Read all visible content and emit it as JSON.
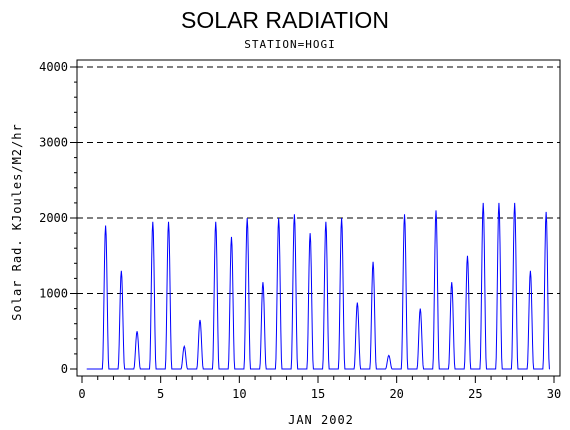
{
  "chart_data": {
    "type": "line",
    "title": "SOLAR RADIATION",
    "subtitle": "STATION=HOGI",
    "xlabel": "JAN 2002",
    "ylabel": "Solar Rad. KJoules/M2/hr",
    "xlim": [
      0,
      30
    ],
    "ylim": [
      0,
      4000
    ],
    "x_ticks": [
      "0",
      "5",
      "10",
      "15",
      "20",
      "25",
      "30"
    ],
    "y_ticks": [
      "0",
      "1000",
      "2000",
      "3000",
      "4000"
    ],
    "grid": "horizontal-dashed",
    "series": [
      {
        "color": "#0000ff",
        "daily_peaks": [
          {
            "day": 1,
            "peak": 1900
          },
          {
            "day": 2,
            "peak": 1300
          },
          {
            "day": 3,
            "peak": 500
          },
          {
            "day": 4,
            "peak": 1950
          },
          {
            "day": 5,
            "peak": 1950
          },
          {
            "day": 6,
            "peak": 300
          },
          {
            "day": 7,
            "peak": 650
          },
          {
            "day": 8,
            "peak": 1950
          },
          {
            "day": 9,
            "peak": 1750
          },
          {
            "day": 10,
            "peak": 2000
          },
          {
            "day": 11,
            "peak": 1150
          },
          {
            "day": 12,
            "peak": 2000
          },
          {
            "day": 13,
            "peak": 2050
          },
          {
            "day": 14,
            "peak": 1800
          },
          {
            "day": 15,
            "peak": 1950
          },
          {
            "day": 16,
            "peak": 2000
          },
          {
            "day": 17,
            "peak": 880
          },
          {
            "day": 18,
            "peak": 1420
          },
          {
            "day": 19,
            "peak": 180
          },
          {
            "day": 20,
            "peak": 2050
          },
          {
            "day": 21,
            "peak": 800
          },
          {
            "day": 22,
            "peak": 2100
          },
          {
            "day": 23,
            "peak": 1150
          },
          {
            "day": 24,
            "peak": 1500
          },
          {
            "day": 25,
            "peak": 2200
          },
          {
            "day": 26,
            "peak": 2200
          },
          {
            "day": 27,
            "peak": 2200
          },
          {
            "day": 28,
            "peak": 1300
          },
          {
            "day": 29,
            "peak": 2080
          }
        ]
      }
    ]
  }
}
